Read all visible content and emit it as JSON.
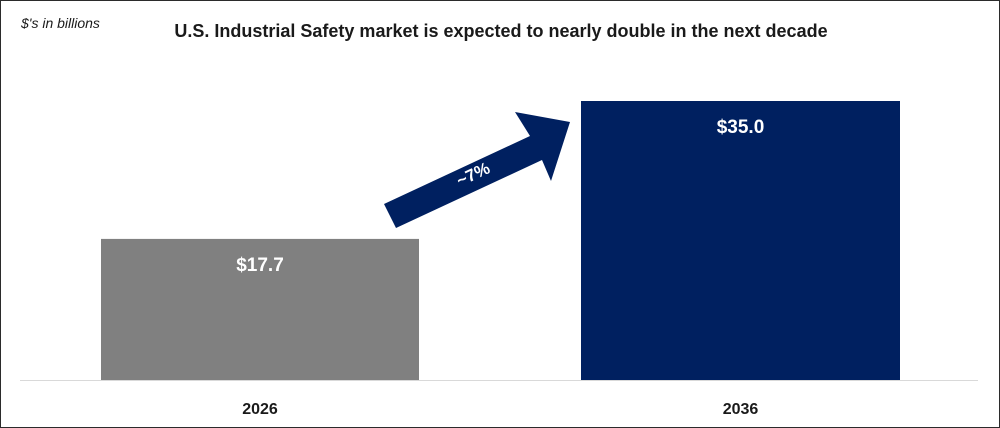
{
  "chart_data": {
    "type": "bar",
    "title": "U.S. Industrial Safety market is expected to nearly double in the next decade",
    "units_note": "$'s in billions",
    "categories": [
      "2026",
      "2036"
    ],
    "values": [
      17.7,
      35.0
    ],
    "value_labels": [
      "$17.7",
      "$35.0"
    ],
    "bar_colors": [
      "#808080",
      "#002060"
    ],
    "ylim": [
      0,
      35.0
    ],
    "annotation": {
      "text": "~7%",
      "color": "#002060",
      "shape": "arrow"
    }
  }
}
